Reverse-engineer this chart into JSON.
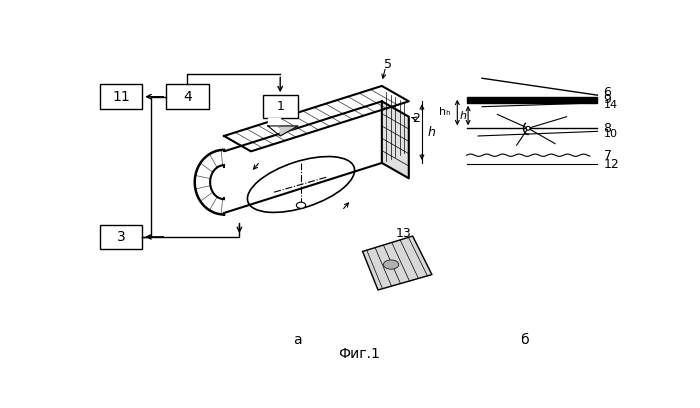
{
  "bg_color": "#ffffff",
  "fig_width": 7.0,
  "fig_height": 4.08,
  "title": "Фиг.1",
  "label_a": "а",
  "label_b": "б"
}
